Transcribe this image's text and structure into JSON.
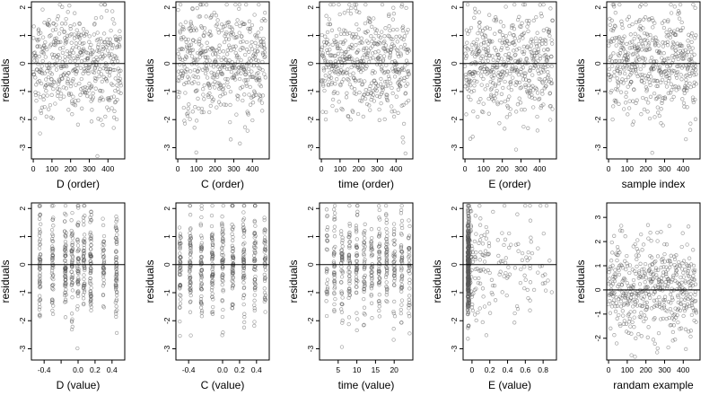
{
  "chart_data": [
    {
      "type": "scatter",
      "xlabel": "D (order)",
      "ylabel": "residuals",
      "xlim": [
        -10,
        490
      ],
      "ylim": [
        -3.4,
        2.2
      ],
      "xticks": [
        0,
        100,
        200,
        300,
        400
      ],
      "yticks": [
        -3,
        -2,
        -1,
        0,
        1,
        2
      ],
      "hline": 0,
      "n_points": 480,
      "pattern": "index-bandgap-drop"
    },
    {
      "type": "scatter",
      "xlabel": "C (order)",
      "ylabel": "residuals",
      "xlim": [
        -10,
        490
      ],
      "ylim": [
        -3.4,
        2.2
      ],
      "xticks": [
        0,
        100,
        200,
        300,
        400
      ],
      "yticks": [
        -3,
        -2,
        -1,
        0,
        1,
        2
      ],
      "hline": 0,
      "n_points": 480,
      "pattern": "index"
    },
    {
      "type": "scatter",
      "xlabel": "time (order)",
      "ylabel": "residuals",
      "xlim": [
        -10,
        490
      ],
      "ylim": [
        -3.4,
        2.2
      ],
      "xticks": [
        0,
        100,
        200,
        300,
        400
      ],
      "yticks": [
        -3,
        -2,
        -1,
        0,
        1,
        2
      ],
      "hline": 0,
      "n_points": 480,
      "pattern": "index"
    },
    {
      "type": "scatter",
      "xlabel": "E (order)",
      "ylabel": "residuals",
      "xlim": [
        -10,
        490
      ],
      "ylim": [
        -3.4,
        2.2
      ],
      "xticks": [
        0,
        100,
        200,
        300,
        400
      ],
      "yticks": [
        -3,
        -2,
        -1,
        0,
        1,
        2
      ],
      "hline": 0,
      "n_points": 480,
      "pattern": "index"
    },
    {
      "type": "scatter",
      "xlabel": "sample index",
      "ylabel": "residuals",
      "xlim": [
        -10,
        490
      ],
      "ylim": [
        -3.4,
        2.2
      ],
      "xticks": [
        0,
        100,
        200,
        300,
        400
      ],
      "yticks": [
        -3,
        -2,
        -1,
        0,
        1,
        2
      ],
      "hline": 0,
      "n_points": 480,
      "pattern": "index-wavy"
    },
    {
      "type": "scatter",
      "xlabel": "D (value)",
      "ylabel": "residuals",
      "xlim": [
        -0.55,
        0.55
      ],
      "ylim": [
        -3.4,
        2.2
      ],
      "xticks": [
        -0.4,
        -0.2,
        0.0,
        0.2,
        0.4
      ],
      "xtick_labels": [
        "-0.4",
        "",
        "0.0",
        "0.2",
        "0.4"
      ],
      "yticks": [
        -3,
        -2,
        -1,
        0,
        1,
        2
      ],
      "hline": 0,
      "n_points": 480,
      "pattern": "columns",
      "columns": [
        -0.45,
        -0.3,
        -0.15,
        -0.07,
        0,
        0.07,
        0.15,
        0.3,
        0.45
      ]
    },
    {
      "type": "scatter",
      "xlabel": "C (value)",
      "ylabel": "residuals",
      "xlim": [
        -0.55,
        0.55
      ],
      "ylim": [
        -3.4,
        2.2
      ],
      "xticks": [
        -0.4,
        0.0,
        0.2,
        0.4
      ],
      "xtick_labels": [
        "-0.4",
        "0.0",
        "0.2",
        "0.4"
      ],
      "yticks": [
        -3,
        -2,
        -1,
        0,
        1,
        2
      ],
      "hline": 0,
      "n_points": 480,
      "pattern": "columns",
      "columns": [
        -0.5,
        -0.38,
        -0.25,
        -0.12,
        0,
        0.12,
        0.25,
        0.38,
        0.5
      ]
    },
    {
      "type": "scatter",
      "xlabel": "time (value)",
      "ylabel": "residuals",
      "xlim": [
        0,
        25
      ],
      "ylim": [
        -3.4,
        2.2
      ],
      "xticks": [
        5,
        10,
        15,
        20
      ],
      "yticks": [
        -3,
        -2,
        -1,
        0,
        1,
        2
      ],
      "hline": 0,
      "n_points": 480,
      "pattern": "columns",
      "columns": [
        2,
        4,
        6,
        8,
        10,
        12,
        14,
        16,
        18,
        20,
        22,
        24
      ]
    },
    {
      "type": "scatter",
      "xlabel": "E (value)",
      "ylabel": "residuals",
      "xlim": [
        -0.1,
        0.95
      ],
      "ylim": [
        -3.4,
        2.2
      ],
      "xticks": [
        0.0,
        0.2,
        0.4,
        0.6,
        0.8
      ],
      "yticks": [
        -3,
        -2,
        -1,
        0,
        1,
        2
      ],
      "hline": 0,
      "n_points": 480,
      "pattern": "skewed"
    },
    {
      "type": "scatter",
      "xlabel": "randam example",
      "ylabel": "residuals",
      "xlim": [
        -10,
        490
      ],
      "ylim": [
        -2.9,
        3.6
      ],
      "xticks": [
        0,
        100,
        200,
        300,
        400
      ],
      "yticks": [
        -2,
        -1,
        0,
        1,
        2,
        3
      ],
      "hline": 0,
      "n_points": 480,
      "pattern": "index"
    }
  ],
  "style": {
    "point_color": "#555555",
    "point_alpha": 0.55,
    "point_radius": 1.8,
    "axis_color": "#000000",
    "background": "#ffffff"
  }
}
